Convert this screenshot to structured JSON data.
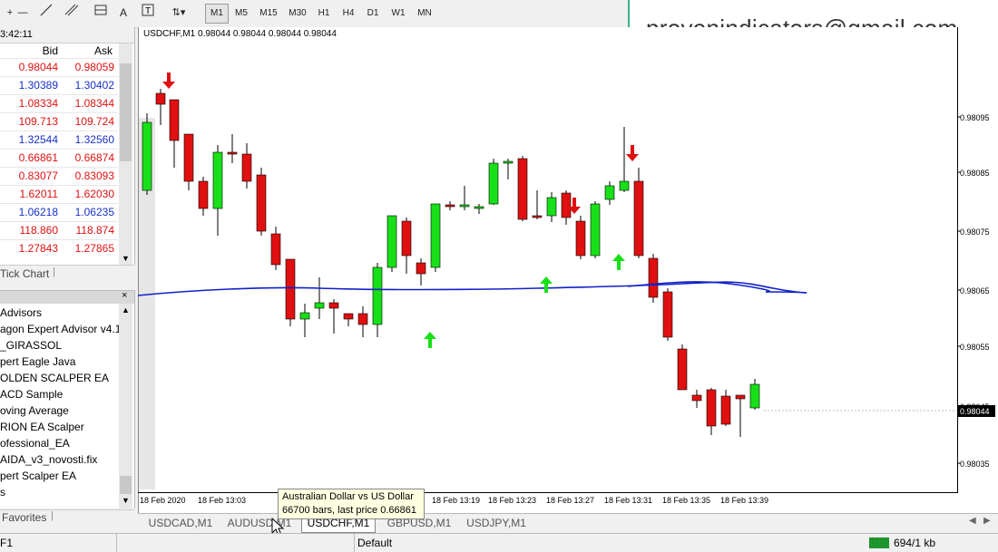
{
  "toolbar": {
    "timeframes": [
      "M1",
      "M5",
      "M15",
      "M30",
      "H1",
      "H4",
      "D1",
      "W1",
      "MN"
    ],
    "active_timeframe": "M1",
    "text_tool": "A",
    "line_tool": "—"
  },
  "market_watch": {
    "time": "3:42:11",
    "col_bid": "Bid",
    "col_ask": "Ask",
    "rows": [
      {
        "bid": "0.98044",
        "ask": "0.98059",
        "color": "#e01010"
      },
      {
        "bid": "1.30389",
        "ask": "1.30402",
        "color": "#1530c8"
      },
      {
        "bid": "1.08334",
        "ask": "1.08344",
        "color": "#e01010"
      },
      {
        "bid": "109.713",
        "ask": "109.724",
        "color": "#e01010"
      },
      {
        "bid": "1.32544",
        "ask": "1.32560",
        "color": "#1530c8"
      },
      {
        "bid": "0.66861",
        "ask": "0.66874",
        "color": "#e01010"
      },
      {
        "bid": "0.83077",
        "ask": "0.83093",
        "color": "#e01010"
      },
      {
        "bid": "1.62011",
        "ask": "1.62030",
        "color": "#e01010"
      },
      {
        "bid": "1.06218",
        "ask": "1.06235",
        "color": "#1530c8"
      },
      {
        "bid": "118.860",
        "ask": "118.874",
        "color": "#e01010"
      },
      {
        "bid": "1.27843",
        "ask": "1.27865",
        "color": "#e01010"
      }
    ],
    "tab_tick_chart": "Tick Chart"
  },
  "navigator": {
    "items": [
      "Advisors",
      "agon Expert Advisor v4.1",
      "_GIRASSOL",
      "pert Eagle Java",
      "OLDEN SCALPER EA",
      "ACD Sample",
      "oving Average",
      "RION EA Scalper",
      "ofessional_EA",
      "AIDA_v3_novosti.fix",
      "pert Scalper EA",
      "s"
    ],
    "tab_favorites": "Favorites"
  },
  "chart": {
    "title": "USDCHF,M1  0.98044 0.98044 0.98044 0.98044",
    "last_price": "0.98044",
    "price_labels": [
      "0.98095",
      "0.98085",
      "0.98075",
      "0.98065",
      "0.98055",
      "0.98045",
      "0.98035"
    ],
    "time_labels": [
      "18 Feb 2020",
      "18 Feb 13:03",
      "18 Feb 13:19",
      "18 Feb 13:23",
      "18 Feb 13:27",
      "18 Feb 13:31",
      "18 Feb 13:35",
      "18 Feb 13:39"
    ],
    "colors": {
      "bull": "#18e018",
      "bear": "#e01010",
      "ma": "#1020c8",
      "arrow_up": "#18e018",
      "arrow_down": "#e01010"
    }
  },
  "chart_tabs": [
    "USDCAD,M1",
    "AUDUSD,M1",
    "USDCHF,M1",
    "GBPUSD,M1",
    "USDJPY,M1"
  ],
  "active_chart_tab": "USDCHF,M1",
  "tooltip": {
    "line1": "Australian Dollar vs US Dollar",
    "line2": "66700 bars, last price 0.66861"
  },
  "status": {
    "left": "F1",
    "profile": "Default",
    "traffic": "694/1 kb"
  },
  "watermark_email": "provenindicators@gmail.com"
}
